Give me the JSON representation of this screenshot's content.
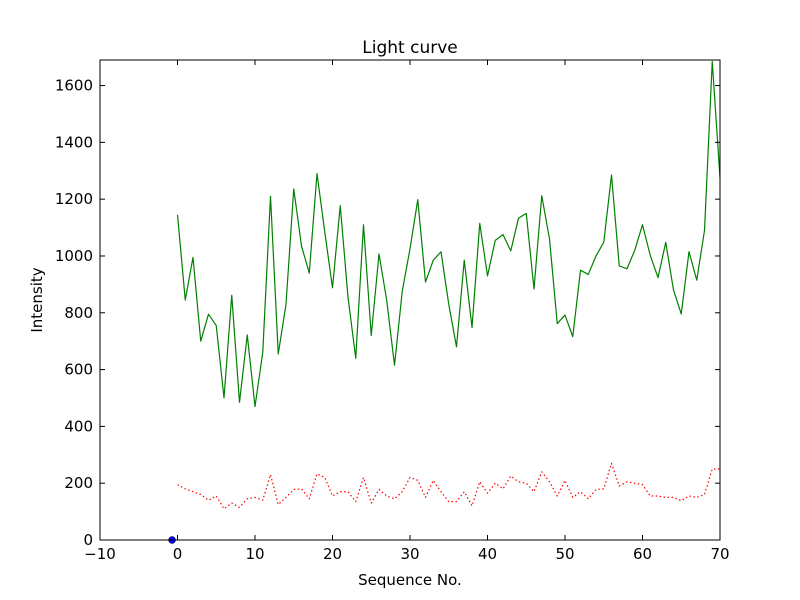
{
  "chart_data": {
    "type": "line",
    "title": "Light curve",
    "xlabel": "Sequence No.",
    "ylabel": "Intensity",
    "xlim": [
      -10,
      70
    ],
    "ylim": [
      0,
      1690
    ],
    "xticks": [
      -10,
      0,
      10,
      20,
      30,
      40,
      50,
      60,
      70
    ],
    "xtick_labels": [
      "−10",
      "0",
      "10",
      "20",
      "30",
      "40",
      "50",
      "60",
      "70"
    ],
    "yticks": [
      0,
      200,
      400,
      600,
      800,
      1000,
      1200,
      1400,
      1600
    ],
    "ytick_labels": [
      "0",
      "200",
      "400",
      "600",
      "800",
      "1000",
      "1200",
      "1400",
      "1600"
    ],
    "grid": false,
    "legend": false,
    "series": [
      {
        "color": "#008000",
        "style": "solid",
        "x": [
          0,
          1,
          2,
          3,
          4,
          5,
          6,
          7,
          8,
          9,
          10,
          11,
          12,
          13,
          14,
          15,
          16,
          17,
          18,
          19,
          20,
          21,
          22,
          23,
          24,
          25,
          26,
          27,
          28,
          29,
          30,
          31,
          32,
          33,
          34,
          35,
          36,
          37,
          38,
          39,
          40,
          41,
          42,
          43,
          44,
          45,
          46,
          47,
          48,
          49,
          50,
          51,
          52,
          53,
          54,
          55,
          56,
          57,
          58,
          59,
          60,
          61,
          62,
          63,
          64,
          65,
          66,
          67,
          68,
          69,
          70
        ],
        "values": [
          1145,
          845,
          995,
          700,
          795,
          755,
          500,
          862,
          485,
          722,
          470,
          660,
          1210,
          655,
          830,
          1236,
          1035,
          940,
          1290,
          1085,
          888,
          1177,
          855,
          640,
          1110,
          720,
          1007,
          843,
          615,
          876,
          1025,
          1198,
          908,
          985,
          1015,
          830,
          680,
          985,
          748,
          1115,
          930,
          1055,
          1075,
          1018,
          1133,
          1150,
          884,
          1212,
          1060,
          762,
          792,
          716,
          950,
          935,
          1000,
          1048,
          1285,
          965,
          955,
          1020,
          1110,
          1002,
          924,
          1048,
          880,
          796,
          1015,
          915,
          1090,
          1685,
          1275
        ]
      },
      {
        "color": "#ff0000",
        "style": "dotted",
        "x": [
          0,
          1,
          2,
          3,
          4,
          5,
          6,
          7,
          8,
          9,
          10,
          11,
          12,
          13,
          14,
          15,
          16,
          17,
          18,
          19,
          20,
          21,
          22,
          23,
          24,
          25,
          26,
          27,
          28,
          29,
          30,
          31,
          32,
          33,
          34,
          35,
          36,
          37,
          38,
          39,
          40,
          41,
          42,
          43,
          44,
          45,
          46,
          47,
          48,
          49,
          50,
          51,
          52,
          53,
          54,
          55,
          56,
          57,
          58,
          59,
          60,
          61,
          62,
          63,
          64,
          65,
          66,
          67,
          68,
          69,
          70
        ],
        "values": [
          195,
          180,
          170,
          160,
          140,
          155,
          110,
          130,
          115,
          145,
          150,
          140,
          230,
          125,
          150,
          178,
          180,
          145,
          233,
          220,
          155,
          170,
          170,
          135,
          220,
          130,
          178,
          155,
          145,
          170,
          220,
          210,
          150,
          210,
          170,
          135,
          135,
          170,
          120,
          205,
          165,
          200,
          180,
          225,
          205,
          200,
          170,
          240,
          205,
          155,
          210,
          150,
          170,
          145,
          178,
          180,
          270,
          190,
          205,
          200,
          195,
          155,
          155,
          150,
          150,
          138,
          155,
          150,
          160,
          250,
          250
        ]
      },
      {
        "color": "#0000ff",
        "style": "marker",
        "x": [
          -0.7
        ],
        "values": [
          0
        ]
      }
    ]
  }
}
